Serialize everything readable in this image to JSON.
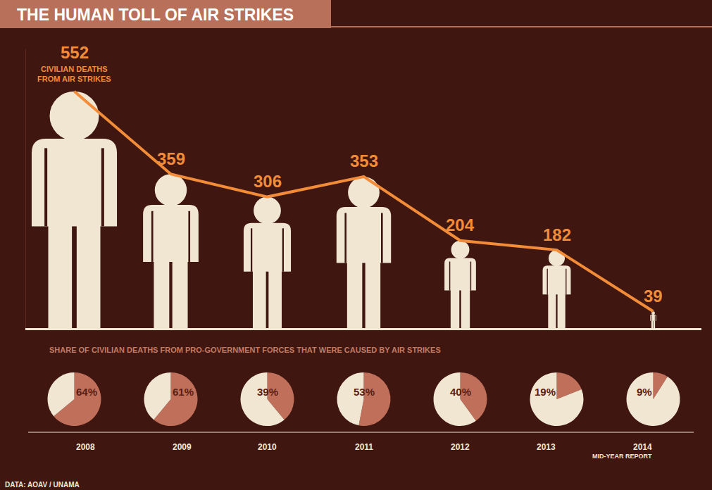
{
  "chart_data": [
    {
      "type": "line",
      "title": "THE HUMAN TOLL OF AIR STRIKES",
      "categories": [
        "2008",
        "2009",
        "2010",
        "2011",
        "2012",
        "2013",
        "2014"
      ],
      "values": [
        552,
        359,
        306,
        353,
        204,
        182,
        39
      ],
      "color": "#f28c38",
      "ylim": [
        0,
        650
      ],
      "data_labels": true,
      "tick_labels": false,
      "annotations": [
        {
          "category": "2008",
          "text": "CIVILIAN DEATHS FROM AIR STRIKES"
        }
      ]
    },
    {
      "type": "pie",
      "title": "SHARE OF CIVILIAN DEATHS FROM PRO-GOVERNMENT FORCES THAT WERE CAUSED BY AIR STRIKES",
      "categories": [
        "2008",
        "2009",
        "2010",
        "2011",
        "2012",
        "2013",
        "2014"
      ],
      "values": [
        64,
        61,
        39,
        53,
        40,
        19,
        9
      ],
      "value_labels": [
        "64%",
        "61%",
        "39%",
        "53%",
        "40%",
        "19%",
        "9%"
      ],
      "color": "#c0705a",
      "data_labels": true,
      "annotations": [
        {
          "category": "2014",
          "text": "MID-YEAR REPORT"
        }
      ],
      "source": "DATA: AOAV / UNAMA"
    }
  ]
}
